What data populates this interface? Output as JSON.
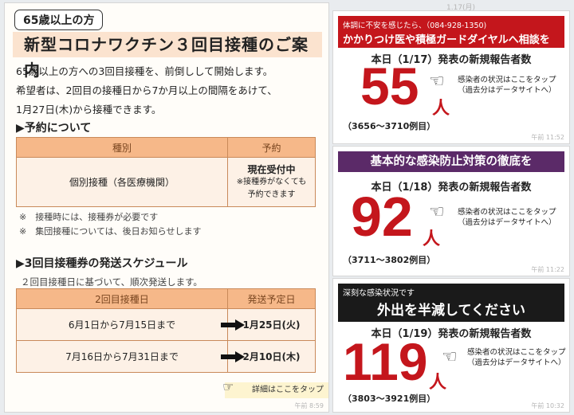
{
  "left": {
    "badge": "65歳以上の方",
    "title": "新型コロナワクチン３回目接種のご案内",
    "intro": [
      "65歳以上の方への3回目接種を、前倒しして開始します。",
      "希望者は、2回目の接種日から7か月以上の間隔をあけて、",
      "1月27日(木)から接種できます。"
    ],
    "reservation_heading": "▶予約について",
    "reservation_table": {
      "headers": [
        "種別",
        "予約"
      ],
      "type": "個別接種（各医療機関）",
      "status": "現在受付中",
      "status_note1": "※接種券がなくても",
      "status_note2": "予約できます"
    },
    "notes": [
      "※　接種時には、接種券が必要です",
      "※　集団接種については、後日お知らせします"
    ],
    "schedule_heading": "▶3回目接種券の発送スケジュール",
    "schedule_sub": "２回目接種日に基づいて、順次発送します。",
    "schedule_table": {
      "headers": [
        "2回目接種日",
        "発送予定日"
      ],
      "rows": [
        {
          "range": "6月1日から7月15日まで",
          "date": "1月25日(火)"
        },
        {
          "range": "7月16日から7月31日まで",
          "date": "2月10日(木)"
        }
      ]
    },
    "tap_label": "詳細はここをタップ",
    "timestamp": "午前 8:59"
  },
  "date_header": "1.17(月)",
  "cards": [
    {
      "header_line1": "体調に不安を感じたら、（084-928-1350)",
      "header_line2": "かかりつけ医や積極ガードダイヤルへ相談を",
      "report": "本日（1/17）発表の新規報告者数",
      "number": "55",
      "unit": "人",
      "range": "（3656～3710例目）",
      "detail1": "感染者の状況はここをタップ",
      "detail2": "（過去分はデータサイトへ）",
      "timestamp": "午前 11:52"
    },
    {
      "header": "基本的な感染防止対策の徹底を",
      "report": "本日（1/18）発表の新規報告者数",
      "number": "92",
      "unit": "人",
      "range": "（3711～3802例目）",
      "detail1": "感染者の状況はここをタップ",
      "detail2": "（過去分はデータサイトへ）",
      "timestamp": "午前 11:22"
    },
    {
      "header_line1": "深刻な感染状況です",
      "header_line2": "外出を半減してください",
      "report": "本日（1/19）発表の新規報告者数",
      "number": "119",
      "unit": "人",
      "range": "（3803～3921例目）",
      "detail1": "感染者の状況はここをタップ",
      "detail2": "（過去分はデータサイトへ）",
      "timestamp": "午前 10:32"
    }
  ],
  "colors": {
    "accent_red": "#c4161c",
    "purple": "#5b2a68",
    "peach": "#f6b889"
  }
}
